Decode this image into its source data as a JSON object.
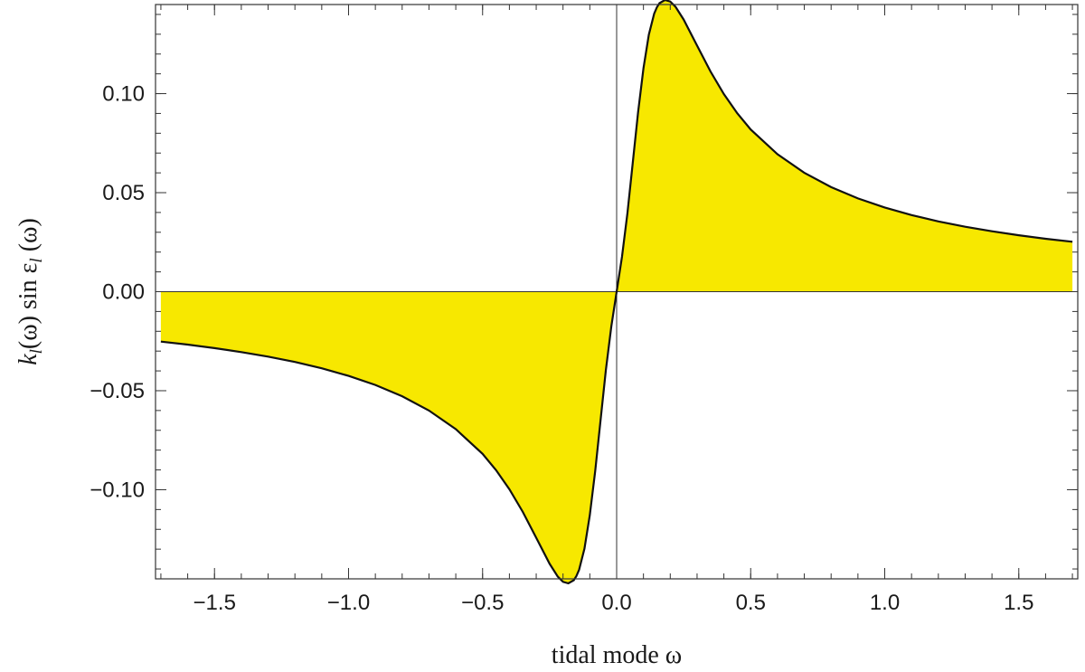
{
  "chart_data": {
    "type": "area",
    "title": "",
    "xlabel": "tidal mode ω",
    "ylabel": "k_l(ω) sin ε_l(ω)",
    "xlim": [
      -1.72,
      1.72
    ],
    "ylim": [
      -0.145,
      0.145
    ],
    "x_ticks": [
      {
        "value": -1.5,
        "label": "−1.5"
      },
      {
        "value": -1.0,
        "label": "−1.0"
      },
      {
        "value": -0.5,
        "label": "−0.5"
      },
      {
        "value": 0.0,
        "label": "0.0"
      },
      {
        "value": 0.5,
        "label": "0.5"
      },
      {
        "value": 1.0,
        "label": "1.0"
      },
      {
        "value": 1.5,
        "label": "1.5"
      }
    ],
    "y_ticks": [
      {
        "value": 0.1,
        "label": "0.10"
      },
      {
        "value": 0.05,
        "label": "0.05"
      },
      {
        "value": 0.0,
        "label": "0.00"
      },
      {
        "value": -0.05,
        "label": "−0.05"
      },
      {
        "value": -0.1,
        "label": "−0.10"
      }
    ],
    "fill_color": "#f7e800",
    "line_color": "#111111",
    "grid": false,
    "series": [
      {
        "x": [
          -1.7,
          -1.6,
          -1.5,
          -1.4,
          -1.3,
          -1.2,
          -1.1,
          -1.0,
          -0.9,
          -0.8,
          -0.7,
          -0.6,
          -0.5,
          -0.45,
          -0.4,
          -0.35,
          -0.3,
          -0.25,
          -0.22,
          -0.2,
          -0.18,
          -0.16,
          -0.15,
          -0.14,
          -0.12,
          -0.1,
          -0.08,
          -0.06,
          -0.04,
          -0.02,
          0.0,
          0.02,
          0.04,
          0.06,
          0.08,
          0.1,
          0.12,
          0.14,
          0.15,
          0.16,
          0.18,
          0.2,
          0.22,
          0.25,
          0.3,
          0.35,
          0.4,
          0.45,
          0.5,
          0.6,
          0.7,
          0.8,
          0.9,
          1.0,
          1.1,
          1.2,
          1.3,
          1.4,
          1.5,
          1.6,
          1.7
        ],
        "y": [
          -0.0252,
          -0.0267,
          -0.0285,
          -0.0305,
          -0.0328,
          -0.0355,
          -0.0387,
          -0.0425,
          -0.0471,
          -0.0528,
          -0.06,
          -0.0694,
          -0.0819,
          -0.0901,
          -0.0998,
          -0.1112,
          -0.1242,
          -0.1374,
          -0.1438,
          -0.1465,
          -0.1473,
          -0.1457,
          -0.1436,
          -0.1404,
          -0.1298,
          -0.1129,
          -0.0905,
          -0.065,
          -0.0395,
          -0.0176,
          0.0,
          0.0176,
          0.0395,
          0.065,
          0.0905,
          0.1129,
          0.1298,
          0.1404,
          0.1436,
          0.1457,
          0.1473,
          0.1465,
          0.1438,
          0.1374,
          0.1242,
          0.1112,
          0.0998,
          0.0901,
          0.0819,
          0.0694,
          0.06,
          0.0528,
          0.0471,
          0.0425,
          0.0387,
          0.0355,
          0.0328,
          0.0305,
          0.0285,
          0.0267,
          0.0252
        ]
      }
    ]
  }
}
